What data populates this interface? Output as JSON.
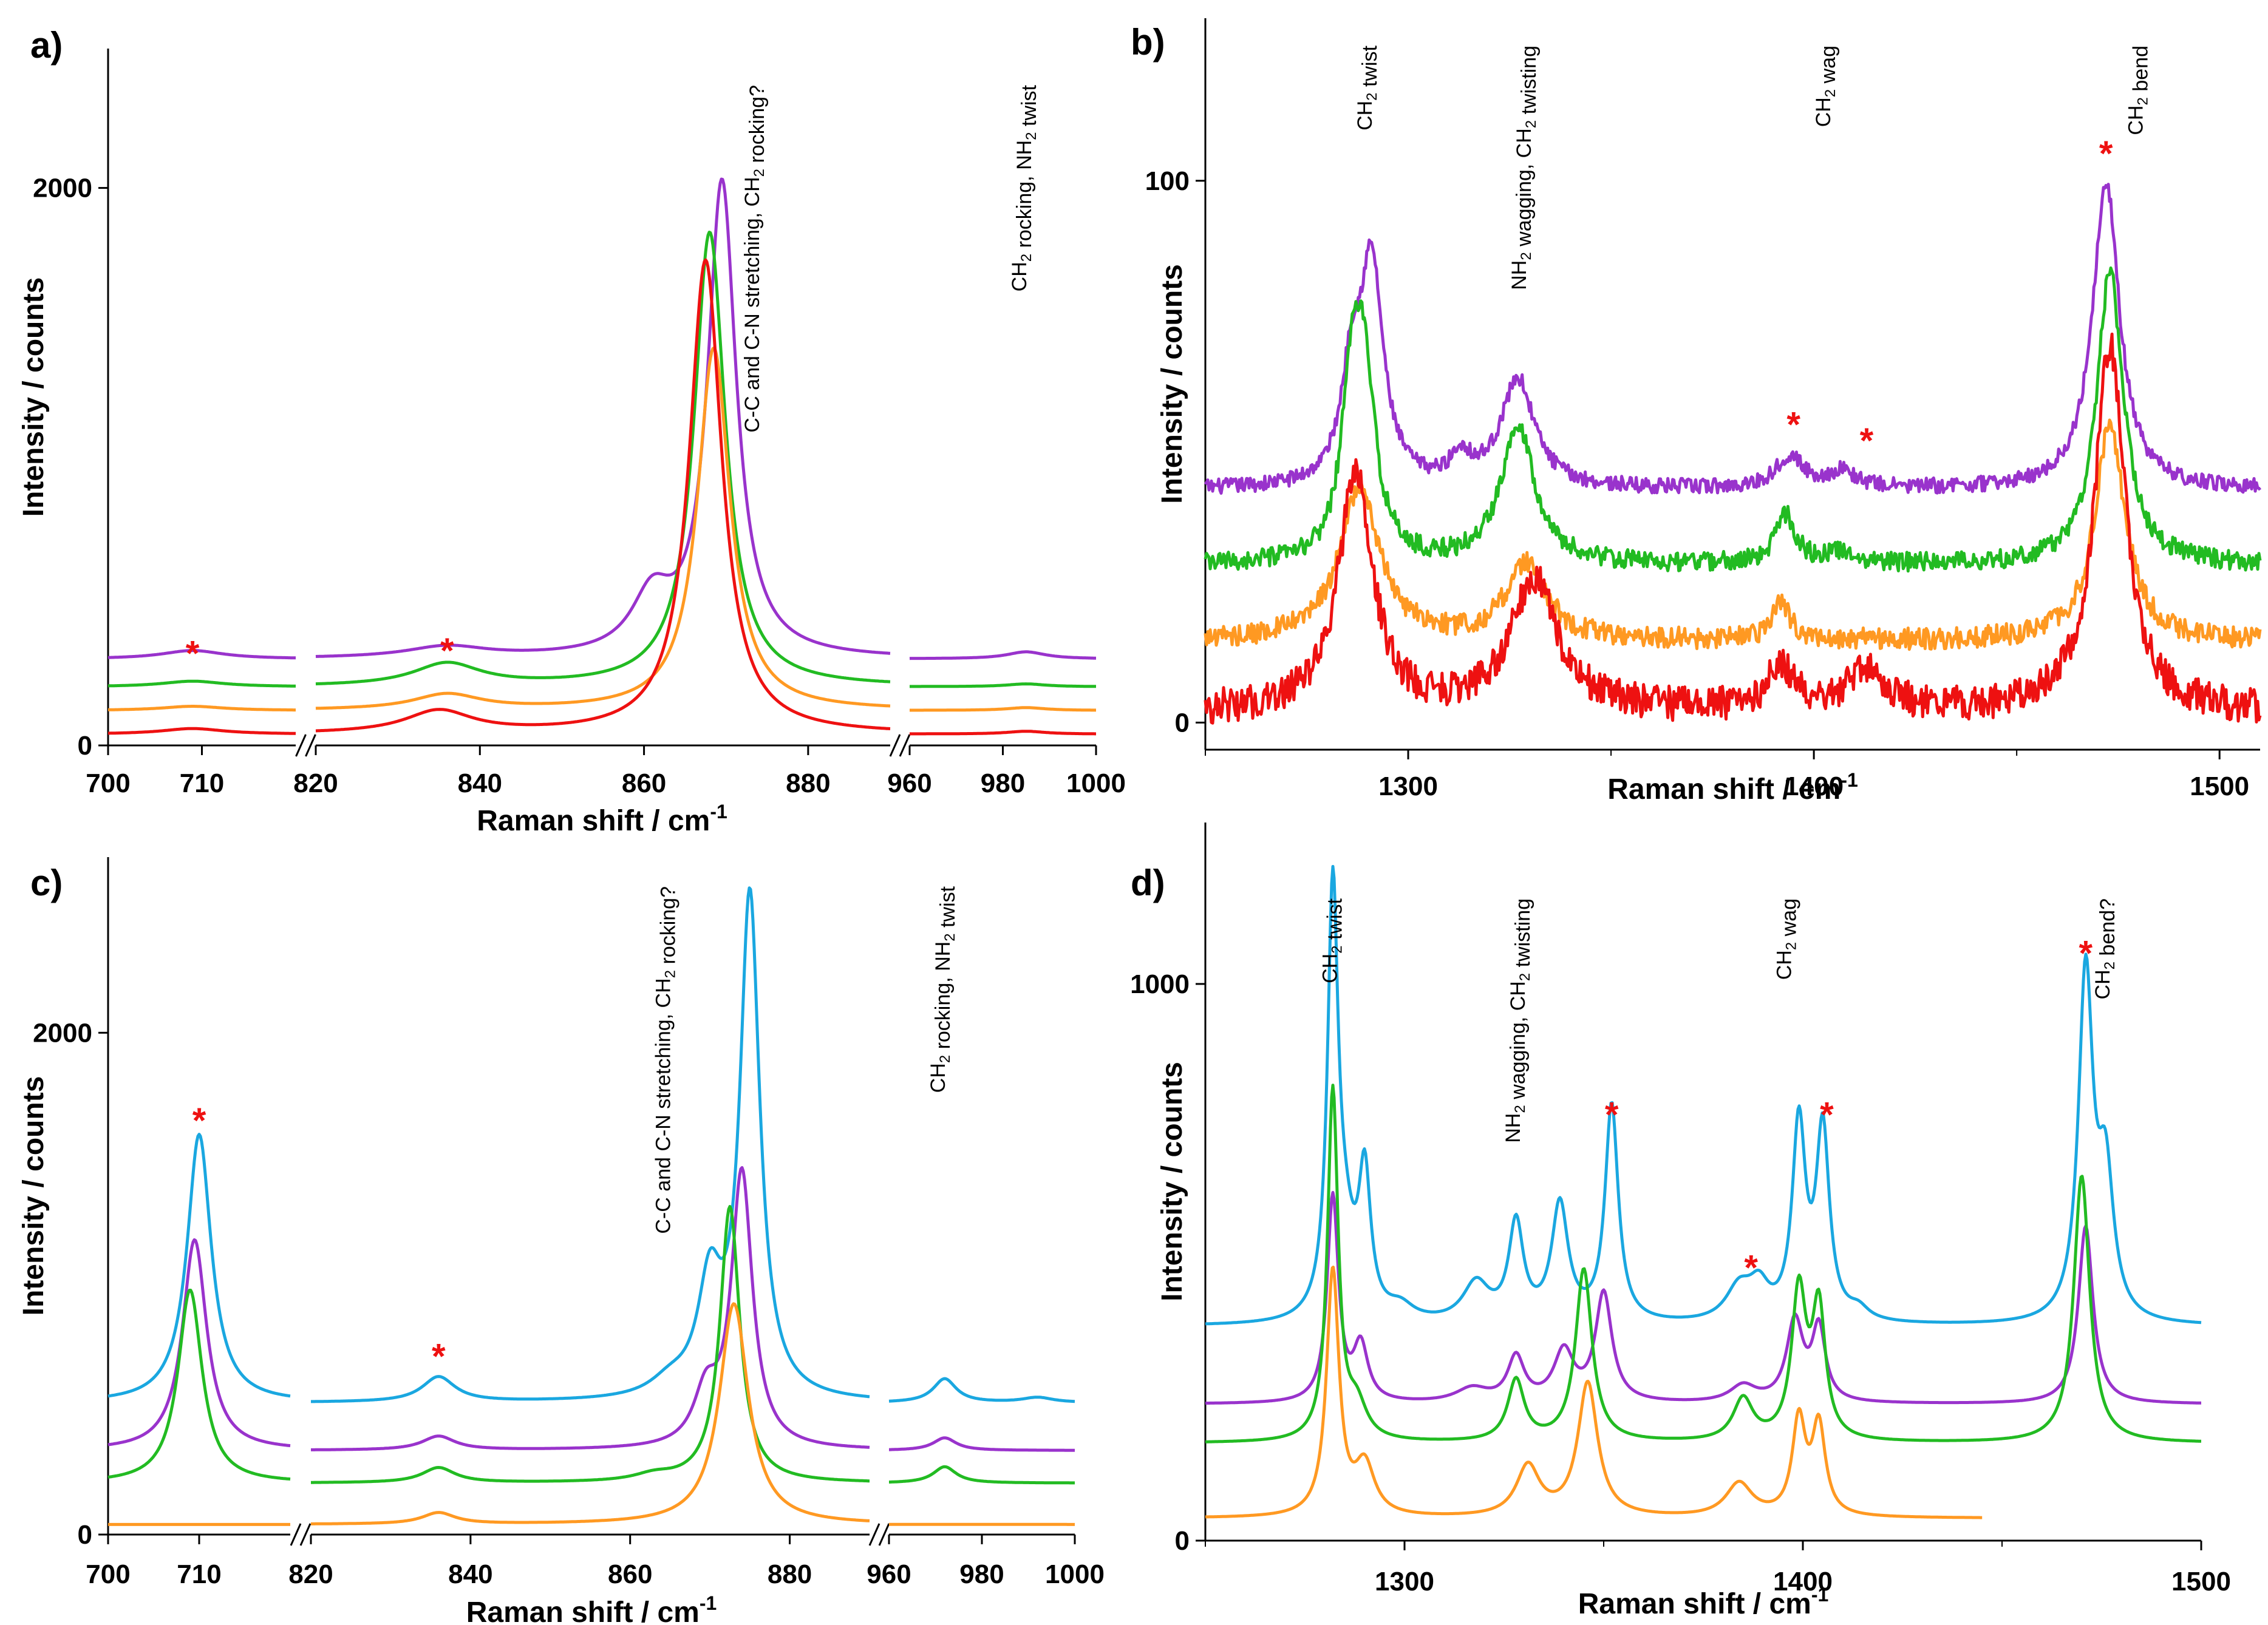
{
  "chart_data": [
    {
      "panel": "a)",
      "type": "line",
      "xlabel": "Raman shift / cm",
      "xlabel_sup": "-1",
      "ylabel": "Intensity / counts",
      "broken_axis": true,
      "segments": [
        {
          "xlim": [
            700,
            720
          ],
          "ticks": [
            700,
            710
          ],
          "tick_labels": [
            "700",
            "710"
          ]
        },
        {
          "xlim": [
            820,
            890
          ],
          "ticks": [
            820,
            840,
            860,
            880
          ],
          "tick_labels": [
            "820",
            "840",
            "860",
            "880"
          ]
        },
        {
          "xlim": [
            960,
            1000
          ],
          "ticks": [
            960,
            980,
            1000
          ],
          "tick_labels": [
            "960",
            "980",
            "1000"
          ]
        }
      ],
      "ylim": [
        0,
        2500
      ],
      "yticks": [
        0,
        2000
      ],
      "ytick_labels": [
        "0",
        "2000"
      ],
      "annotations": [
        {
          "x": 874,
          "parts": [
            {
              "t": "C-C and C-N stretching, CH"
            },
            {
              "t": "2",
              "sub": true
            },
            {
              "t": " rocking?"
            }
          ]
        },
        {
          "x": 985,
          "parts": [
            {
              "t": "CH"
            },
            {
              "t": "2",
              "sub": true
            },
            {
              "t": " rocking, NH"
            },
            {
              "t": "2",
              "sub": true
            },
            {
              "t": " twist"
            }
          ]
        }
      ],
      "stars": [
        {
          "x": 709,
          "y": 330,
          "label": "*"
        },
        {
          "x": 836,
          "y": 340,
          "label": "*"
        }
      ],
      "series": [
        {
          "name": "purple",
          "color": "#9933cc",
          "baseline": 310,
          "peaks": [
            [
              709,
              30,
              4
            ],
            [
              836,
              40,
              6
            ],
            [
              861,
              200,
              3
            ],
            [
              869.5,
              1700,
              2.1
            ],
            [
              985,
              25,
              5
            ]
          ]
        },
        {
          "name": "green",
          "color": "#22bb22",
          "baseline": 210,
          "peaks": [
            [
              709,
              20,
              4
            ],
            [
              836,
              80,
              5
            ],
            [
              868,
              1630,
              2.3
            ],
            [
              985,
              10,
              5
            ]
          ]
        },
        {
          "name": "orange",
          "color": "#ff9922",
          "baseline": 125,
          "peaks": [
            [
              709,
              15,
              4
            ],
            [
              836,
              55,
              5
            ],
            [
              868.5,
              1300,
              2.4
            ],
            [
              985,
              10,
              5
            ]
          ]
        },
        {
          "name": "red",
          "color": "#ee1111",
          "baseline": 40,
          "peaks": [
            [
              709,
              20,
              4
            ],
            [
              835,
              80,
              5
            ],
            [
              867.5,
              1700,
              2.4
            ],
            [
              985,
              10,
              5
            ]
          ]
        }
      ]
    },
    {
      "panel": "b)",
      "type": "line",
      "xlabel": "Raman shift / cm",
      "xlabel_sup": "-1",
      "ylabel": "Intensity / counts",
      "xlim": [
        1250,
        1510
      ],
      "ylim": [
        -5,
        130
      ],
      "xticks": [
        1300,
        1400,
        1500
      ],
      "xtick_labels": [
        "1300",
        "1400",
        "1500"
      ],
      "yticks": [
        0,
        100
      ],
      "ytick_labels": [
        "0",
        "100"
      ],
      "annotations": [
        {
          "x": 1291,
          "parts": [
            {
              "t": "CH"
            },
            {
              "t": "2",
              "sub": true
            },
            {
              "t": " twist"
            }
          ]
        },
        {
          "x": 1329,
          "parts": [
            {
              "t": "NH"
            },
            {
              "t": "2",
              "sub": true
            },
            {
              "t": " wagging, CH"
            },
            {
              "t": "2",
              "sub": true
            },
            {
              "t": " twisting"
            }
          ]
        },
        {
          "x": 1404,
          "parts": [
            {
              "t": "CH"
            },
            {
              "t": "2",
              "sub": true
            },
            {
              "t": " wag"
            }
          ]
        },
        {
          "x": 1481,
          "parts": [
            {
              "t": "CH"
            },
            {
              "t": "2",
              "sub": true
            },
            {
              "t": " bend"
            }
          ]
        }
      ],
      "stars": [
        {
          "x": 1395,
          "y": 55,
          "label": "*"
        },
        {
          "x": 1413,
          "y": 52,
          "label": "*"
        },
        {
          "x": 1472,
          "y": 105,
          "label": "*"
        }
      ],
      "series": [
        {
          "name": "purple",
          "color": "#9933cc",
          "baseline": 43,
          "noise": 0.7,
          "peaks": [
            [
              1286,
              18,
              3
            ],
            [
              1291,
              40,
              3.5
            ],
            [
              1313,
              5,
              3
            ],
            [
              1327,
              20,
              5
            ],
            [
              1394,
              6,
              4
            ],
            [
              1407,
              3,
              4
            ],
            [
              1472,
              57,
              4
            ]
          ]
        },
        {
          "name": "green",
          "color": "#22bb22",
          "baseline": 29,
          "noise": 0.9,
          "peaks": [
            [
              1286,
              25,
              3
            ],
            [
              1289,
              33,
              3.5
            ],
            [
              1327,
              26,
              5
            ],
            [
              1393,
              9,
              3
            ],
            [
              1407,
              2,
              5
            ],
            [
              1473,
              54,
              4
            ]
          ]
        },
        {
          "name": "orange",
          "color": "#ff9922",
          "baseline": 15,
          "noise": 1.0,
          "peaks": [
            [
              1288,
              28,
              6
            ],
            [
              1329,
              14,
              6
            ],
            [
              1392,
              7,
              2.5
            ],
            [
              1473,
              40,
              4.5
            ]
          ]
        },
        {
          "name": "red",
          "color": "#ee1111",
          "baseline": 2,
          "noise": 1.6,
          "peaks": [
            [
              1287,
              44,
              5
            ],
            [
              1331,
              24,
              7
            ],
            [
              1392,
              8,
              4
            ],
            [
              1413,
              7,
              6
            ],
            [
              1473,
              68,
              4.5
            ]
          ]
        }
      ]
    },
    {
      "panel": "c)",
      "type": "line",
      "xlabel": "Raman shift / cm",
      "xlabel_sup": "-1",
      "ylabel": "Intensity / counts",
      "broken_axis": true,
      "segments": [
        {
          "xlim": [
            700,
            720
          ],
          "ticks": [
            700,
            710
          ],
          "tick_labels": [
            "700",
            "710"
          ]
        },
        {
          "xlim": [
            820,
            890
          ],
          "ticks": [
            820,
            840,
            860,
            880
          ],
          "tick_labels": [
            "820",
            "840",
            "860",
            "880"
          ]
        },
        {
          "xlim": [
            960,
            1000
          ],
          "ticks": [
            960,
            980,
            1000
          ],
          "tick_labels": [
            "960",
            "980",
            "1000"
          ]
        }
      ],
      "ylim": [
        0,
        2700
      ],
      "yticks": [
        0,
        2000
      ],
      "ytick_labels": [
        "0",
        "2000"
      ],
      "annotations": [
        {
          "x": 865,
          "parts": [
            {
              "t": "C-C and C-N stretching, CH"
            },
            {
              "t": "2",
              "sub": true
            },
            {
              "t": " rocking?"
            }
          ]
        },
        {
          "x": 972,
          "parts": [
            {
              "t": "CH"
            },
            {
              "t": "2",
              "sub": true
            },
            {
              "t": " rocking, NH"
            },
            {
              "t": "2",
              "sub": true
            },
            {
              "t": " twist"
            }
          ]
        }
      ],
      "stars": [
        {
          "x": 710,
          "y": 1650,
          "label": "*"
        },
        {
          "x": 836,
          "y": 710,
          "label": "*"
        }
      ],
      "series": [
        {
          "name": "blue",
          "color": "#1aa7e0",
          "baseline": 525,
          "peaks": [
            [
              710,
              1070,
              1.6
            ],
            [
              836,
              100,
              2.5
            ],
            [
              865,
              60,
              3
            ],
            [
              870,
              430,
              1.8
            ],
            [
              875,
              2000,
              1.5
            ],
            [
              972,
              95,
              3
            ],
            [
              992,
              20,
              4
            ]
          ]
        },
        {
          "name": "purple",
          "color": "#9933cc",
          "baseline": 335,
          "peaks": [
            [
              709.5,
              840,
              1.6
            ],
            [
              836,
              55,
              2.5
            ],
            [
              869.5,
              200,
              1.8
            ],
            [
              874,
              1100,
              1.6
            ],
            [
              972,
              50,
              3
            ]
          ]
        },
        {
          "name": "green",
          "color": "#22bb22",
          "baseline": 205,
          "peaks": [
            [
              709,
              770,
              1.6
            ],
            [
              836,
              60,
              2.5
            ],
            [
              863,
              25,
              3
            ],
            [
              872.5,
              1100,
              1.5
            ],
            [
              972,
              65,
              3
            ]
          ]
        },
        {
          "name": "orange",
          "color": "#ff9922",
          "baseline": 40,
          "peaks": [
            [
              836,
              45,
              2.5
            ],
            [
              873,
              880,
              2.2
            ]
          ]
        }
      ]
    },
    {
      "panel": "d)",
      "type": "line",
      "xlabel": "Raman shift / cm",
      "xlabel_sup": "-1",
      "ylabel": "Intensity / counts",
      "xlim": [
        1250,
        1500
      ],
      "ylim": [
        0,
        1290
      ],
      "xticks": [
        1300,
        1400,
        1500
      ],
      "xtick_labels": [
        "1300",
        "1400",
        "1500"
      ],
      "yticks": [
        0,
        1000
      ],
      "ytick_labels": [
        "0",
        "1000"
      ],
      "annotations": [
        {
          "x": 1283,
          "parts": [
            {
              "t": "CH"
            },
            {
              "t": "2",
              "sub": true
            },
            {
              "t": " twist"
            }
          ]
        },
        {
          "x": 1329,
          "parts": [
            {
              "t": "NH"
            },
            {
              "t": "2",
              "sub": true
            },
            {
              "t": " wagging, CH"
            },
            {
              "t": "2",
              "sub": true
            },
            {
              "t": " twisting"
            }
          ]
        },
        {
          "x": 1397,
          "parts": [
            {
              "t": "CH"
            },
            {
              "t": "2",
              "sub": true
            },
            {
              "t": " wag"
            }
          ]
        },
        {
          "x": 1477,
          "parts": [
            {
              "t": "CH"
            },
            {
              "t": "2",
              "sub": true
            },
            {
              "t": " bend?"
            }
          ]
        }
      ],
      "stars": [
        {
          "x": 1352,
          "y": 765,
          "label": "*"
        },
        {
          "x": 1387,
          "y": 490,
          "label": "*"
        },
        {
          "x": 1406,
          "y": 765,
          "label": "*"
        },
        {
          "x": 1471,
          "y": 1055,
          "label": "*"
        }
      ],
      "series": [
        {
          "name": "blue",
          "color": "#1aa7e0",
          "baseline": 385,
          "peaks": [
            [
              1282,
              750,
              1.6
            ],
            [
              1285,
              120,
              3
            ],
            [
              1290,
              250,
              1.8
            ],
            [
              1299,
              25,
              4
            ],
            [
              1318,
              70,
              4
            ],
            [
              1328,
              175,
              2.2
            ],
            [
              1339,
              210,
              2.5
            ],
            [
              1352,
              390,
              2
            ],
            [
              1384,
              60,
              4
            ],
            [
              1389,
              55,
              3
            ],
            [
              1399,
              350,
              2
            ],
            [
              1405,
              340,
              2
            ],
            [
              1414,
              20,
              3
            ],
            [
              1471,
              620,
              2.2
            ],
            [
              1476,
              250,
              2.4
            ]
          ]
        },
        {
          "name": "purple",
          "color": "#9933cc",
          "baseline": 245,
          "peaks": [
            [
              1282,
              370,
              1.7
            ],
            [
              1289,
              100,
              2.2
            ],
            [
              1317,
              25,
              5
            ],
            [
              1328,
              80,
              2.5
            ],
            [
              1340,
              90,
              3
            ],
            [
              1350,
              195,
              2.5
            ],
            [
              1385,
              30,
              4
            ],
            [
              1398,
              145,
              2.5
            ],
            [
              1404,
              130,
              2
            ],
            [
              1471,
              320,
              2.2
            ]
          ]
        },
        {
          "name": "green",
          "color": "#22bb22",
          "baseline": 175,
          "peaks": [
            [
              1282,
              630,
              1.6
            ],
            [
              1288,
              60,
              3
            ],
            [
              1328,
              110,
              2.5
            ],
            [
              1345,
              310,
              2.5
            ],
            [
              1385,
              75,
              3
            ],
            [
              1399,
              265,
              2.2
            ],
            [
              1404,
              230,
              2
            ],
            [
              1470,
              480,
              2.4
            ]
          ]
        },
        {
          "name": "orange",
          "color": "#ff9922",
          "baseline": 40,
          "xmax": 1445,
          "peaks": [
            [
              1282,
              440,
              1.9
            ],
            [
              1290,
              90,
              3
            ],
            [
              1331,
              90,
              3.5
            ],
            [
              1346,
              240,
              3
            ],
            [
              1384,
              60,
              4
            ],
            [
              1399,
              170,
              2
            ],
            [
              1404,
              160,
              2
            ]
          ]
        }
      ]
    }
  ]
}
